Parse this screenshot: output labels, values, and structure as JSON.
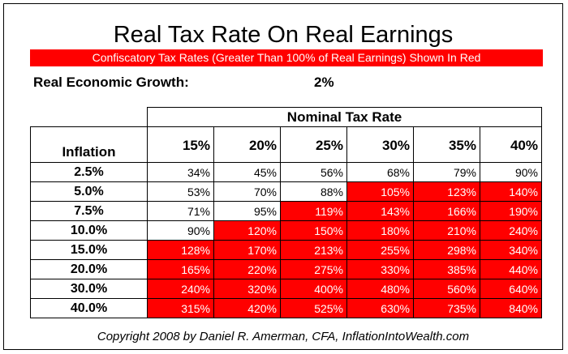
{
  "title": "Real Tax Rate On Real Earnings",
  "banner": "Confiscatory Tax Rates (Greater Than 100% of Real Earnings) Shown In Red",
  "growth": {
    "label": "Real Economic Growth:",
    "value": "2%"
  },
  "copyright": "Copyright 2008 by Daniel R. Amerman, CFA, InflationIntoWealth.com",
  "colors": {
    "confiscatory": "#ff0000",
    "normal": "#ffffff"
  },
  "chart_data": {
    "type": "table",
    "title": "Real Tax Rate On Real Earnings",
    "column_group_label": "Nominal Tax Rate",
    "row_header_label": "Inflation",
    "columns": [
      "15%",
      "20%",
      "25%",
      "30%",
      "35%",
      "40%"
    ],
    "rows": [
      "2.5%",
      "5.0%",
      "7.5%",
      "10.0%",
      "15.0%",
      "20.0%",
      "30.0%",
      "40.0%"
    ],
    "values": [
      [
        "34%",
        "45%",
        "56%",
        "68%",
        "79%",
        "90%"
      ],
      [
        "53%",
        "70%",
        "88%",
        "105%",
        "123%",
        "140%"
      ],
      [
        "71%",
        "95%",
        "119%",
        "143%",
        "166%",
        "190%"
      ],
      [
        "90%",
        "120%",
        "150%",
        "180%",
        "210%",
        "240%"
      ],
      [
        "128%",
        "170%",
        "213%",
        "255%",
        "298%",
        "340%"
      ],
      [
        "165%",
        "220%",
        "275%",
        "330%",
        "385%",
        "440%"
      ],
      [
        "240%",
        "320%",
        "400%",
        "480%",
        "560%",
        "640%"
      ],
      [
        "315%",
        "420%",
        "525%",
        "630%",
        "735%",
        "840%"
      ]
    ],
    "highlight_rule": "value > 100% shown in red"
  }
}
